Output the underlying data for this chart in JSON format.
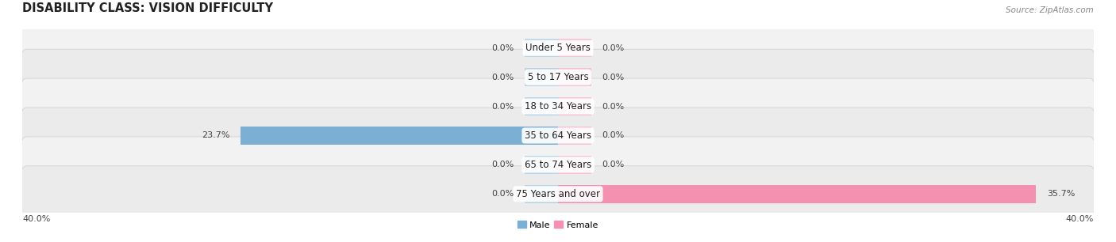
{
  "title": "DISABILITY CLASS: VISION DIFFICULTY",
  "source": "Source: ZipAtlas.com",
  "categories": [
    "Under 5 Years",
    "5 to 17 Years",
    "18 to 34 Years",
    "35 to 64 Years",
    "65 to 74 Years",
    "75 Years and over"
  ],
  "male_values": [
    0.0,
    0.0,
    0.0,
    23.7,
    0.0,
    0.0
  ],
  "female_values": [
    0.0,
    0.0,
    0.0,
    0.0,
    0.0,
    35.7
  ],
  "male_color": "#7bafd4",
  "female_color": "#f490b0",
  "male_stub_color": "#b8d4e8",
  "female_stub_color": "#f8c0d0",
  "row_bg_even": "#f2f2f2",
  "row_bg_odd": "#ebebeb",
  "x_max": 40.0,
  "x_min": -40.0,
  "stub_size": 2.5,
  "background_color": "#ffffff",
  "title_fontsize": 10.5,
  "source_fontsize": 7.5,
  "bar_height": 0.62,
  "label_fontsize": 8.0,
  "cat_fontsize": 8.5
}
